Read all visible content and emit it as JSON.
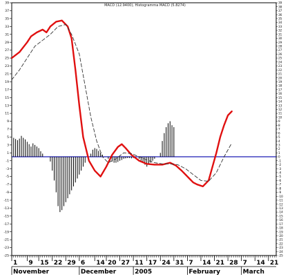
{
  "chart_data": {
    "type": "line",
    "title": "MACD (12.9400), Histogramma MACD (5.8274)",
    "xlabel": "",
    "ylabel": "",
    "ylim": [
      -25,
      39
    ],
    "yticks_left": [
      39,
      37,
      35,
      33,
      31,
      29,
      27,
      25,
      23,
      21,
      19,
      17,
      15,
      13,
      11,
      9,
      7,
      5,
      3,
      1,
      -1,
      -3,
      -5,
      -7,
      -9,
      -11,
      -13,
      -15,
      -17,
      -19,
      -21,
      -23,
      -25
    ],
    "yticks_right": [
      39,
      38,
      37,
      36,
      35,
      34,
      33,
      32,
      31,
      30,
      29,
      28,
      27,
      26,
      25,
      24,
      23,
      22,
      21,
      20,
      19,
      18,
      17,
      16,
      15,
      14,
      13,
      12,
      11,
      10,
      9,
      8,
      7,
      6,
      5,
      4,
      3,
      2,
      1,
      0,
      -1,
      -2,
      -3,
      -4,
      -5,
      -6,
      -7,
      -8,
      -9,
      -10,
      -11,
      -12,
      -13,
      -14,
      -15,
      -16,
      -17,
      -18,
      -19,
      -20,
      -21,
      -22,
      -23,
      -24,
      -25
    ],
    "x_tick_labels": [
      {
        "label": "1",
        "t": 0
      },
      {
        "label": "9",
        "t": 8
      },
      {
        "label": "15",
        "t": 14
      },
      {
        "label": "22",
        "t": 21
      },
      {
        "label": "29",
        "t": 28
      },
      {
        "label": "6",
        "t": 35
      },
      {
        "label": "14",
        "t": 43
      },
      {
        "label": "20",
        "t": 49
      },
      {
        "label": "27",
        "t": 56
      },
      {
        "label": "11",
        "t": 63
      },
      {
        "label": "17",
        "t": 70
      },
      {
        "label": "24",
        "t": 77
      },
      {
        "label": "31",
        "t": 84
      },
      {
        "label": "7",
        "t": 91
      },
      {
        "label": "14",
        "t": 98
      },
      {
        "label": "21",
        "t": 105
      },
      {
        "label": "28",
        "t": 112
      },
      {
        "label": "7",
        "t": 119
      },
      {
        "label": "14",
        "t": 126
      },
      {
        "label": "21",
        "t": 133
      }
    ],
    "month_labels": [
      {
        "label": "November",
        "t": 0
      },
      {
        "label": "December",
        "t": 35
      },
      {
        "label": "2005",
        "t": 63
      },
      {
        "label": "February",
        "t": 91
      },
      {
        "label": "March",
        "t": 119
      }
    ],
    "x_range": [
      0,
      137
    ],
    "zero_line_color": "#1a1ab3",
    "series": [
      {
        "style": "solid",
        "color": "#e01010",
        "points": [
          [
            0,
            25
          ],
          [
            4,
            26.5
          ],
          [
            8,
            29
          ],
          [
            10,
            30.5
          ],
          [
            13,
            31.5
          ],
          [
            16,
            32.2
          ],
          [
            18,
            31.5
          ],
          [
            20,
            33
          ],
          [
            23,
            34.2
          ],
          [
            26,
            34.5
          ],
          [
            29,
            33
          ],
          [
            31,
            30
          ],
          [
            33,
            22
          ],
          [
            35,
            13
          ],
          [
            37,
            5
          ],
          [
            40,
            -1
          ],
          [
            43,
            -3.5
          ],
          [
            46,
            -5
          ],
          [
            49,
            -2.5
          ],
          [
            52,
            0.5
          ],
          [
            55,
            2.5
          ],
          [
            57,
            3.2
          ],
          [
            59,
            2.2
          ],
          [
            62,
            0.5
          ],
          [
            66,
            -1
          ],
          [
            70,
            -1.8
          ],
          [
            74,
            -2
          ],
          [
            78,
            -2
          ],
          [
            82,
            -1.5
          ],
          [
            85,
            -2.2
          ],
          [
            88,
            -3.5
          ],
          [
            90,
            -4.5
          ],
          [
            92,
            -5.5
          ],
          [
            94,
            -6.5
          ],
          [
            96,
            -7
          ],
          [
            99,
            -7.5
          ],
          [
            102,
            -6
          ],
          [
            104,
            -2.5
          ],
          [
            106,
            1
          ],
          [
            108,
            5
          ],
          [
            110,
            8
          ],
          [
            112,
            10.5
          ],
          [
            114,
            11.5
          ]
        ]
      },
      {
        "style": "dashed",
        "color": "#333333",
        "points": [
          [
            0,
            19.5
          ],
          [
            4,
            22
          ],
          [
            8,
            25
          ],
          [
            12,
            28
          ],
          [
            16,
            29.5
          ],
          [
            20,
            31
          ],
          [
            24,
            33
          ],
          [
            28,
            33.5
          ],
          [
            31,
            31
          ],
          [
            35,
            26
          ],
          [
            38,
            18
          ],
          [
            41,
            10
          ],
          [
            44,
            4
          ],
          [
            47,
            0
          ],
          [
            50,
            -1.5
          ],
          [
            54,
            -0.5
          ],
          [
            58,
            1
          ],
          [
            62,
            0.8
          ],
          [
            66,
            0
          ],
          [
            70,
            -0.8
          ],
          [
            74,
            -1.5
          ],
          [
            78,
            -1.8
          ],
          [
            82,
            -1.8
          ],
          [
            86,
            -2
          ],
          [
            90,
            -3
          ],
          [
            94,
            -4.5
          ],
          [
            98,
            -6
          ],
          [
            102,
            -6.2
          ],
          [
            106,
            -4
          ],
          [
            110,
            0
          ],
          [
            114,
            3.5
          ]
        ]
      }
    ],
    "histogram": [
      [
        0,
        5.2
      ],
      [
        1,
        4.8
      ],
      [
        2,
        4.5
      ],
      [
        3,
        4.2
      ],
      [
        4,
        4.6
      ],
      [
        5,
        5.3
      ],
      [
        6,
        4.8
      ],
      [
        7,
        4.4
      ],
      [
        8,
        3.8
      ],
      [
        9,
        3.2
      ],
      [
        10,
        2.6
      ],
      [
        11,
        3.4
      ],
      [
        12,
        3.0
      ],
      [
        13,
        2.6
      ],
      [
        14,
        2.2
      ],
      [
        15,
        1.4
      ],
      [
        16,
        0.8
      ],
      [
        20,
        -1.2
      ],
      [
        21,
        -3.5
      ],
      [
        22,
        -6
      ],
      [
        23,
        -9
      ],
      [
        24,
        -12.5
      ],
      [
        25,
        -14
      ],
      [
        26,
        -13.5
      ],
      [
        27,
        -12.5
      ],
      [
        28,
        -11.5
      ],
      [
        29,
        -10.5
      ],
      [
        30,
        -9.5
      ],
      [
        31,
        -8.5
      ],
      [
        32,
        -7.5
      ],
      [
        33,
        -6.5
      ],
      [
        34,
        -5.5
      ],
      [
        35,
        -4.5
      ],
      [
        36,
        -3.5
      ],
      [
        37,
        -2.5
      ],
      [
        38,
        -1.5
      ],
      [
        41,
        0.8
      ],
      [
        42,
        1.8
      ],
      [
        43,
        2.2
      ],
      [
        44,
        2.0
      ],
      [
        45,
        1.5
      ],
      [
        46,
        1.0
      ],
      [
        47,
        0.5
      ],
      [
        50,
        -0.5
      ],
      [
        51,
        -1
      ],
      [
        52,
        -1.2
      ],
      [
        53,
        -1.5
      ],
      [
        54,
        -1.5
      ],
      [
        55,
        -1.3
      ],
      [
        56,
        -1.0
      ],
      [
        57,
        -0.8
      ],
      [
        58,
        -0.5
      ],
      [
        59,
        -0.4
      ],
      [
        60,
        -0.3
      ],
      [
        61,
        -0.3
      ],
      [
        62,
        -0.4
      ],
      [
        63,
        -0.3
      ],
      [
        66,
        -0.5
      ],
      [
        67,
        -1
      ],
      [
        68,
        -1.5
      ],
      [
        69,
        -2
      ],
      [
        70,
        -2.5
      ],
      [
        71,
        -2
      ],
      [
        72,
        -1.5
      ],
      [
        73,
        -1
      ],
      [
        74,
        -0.5
      ],
      [
        77,
        1
      ],
      [
        78,
        4
      ],
      [
        79,
        6
      ],
      [
        80,
        7.5
      ],
      [
        81,
        8.5
      ],
      [
        82,
        9
      ],
      [
        83,
        8
      ],
      [
        84,
        7.5
      ]
    ]
  }
}
